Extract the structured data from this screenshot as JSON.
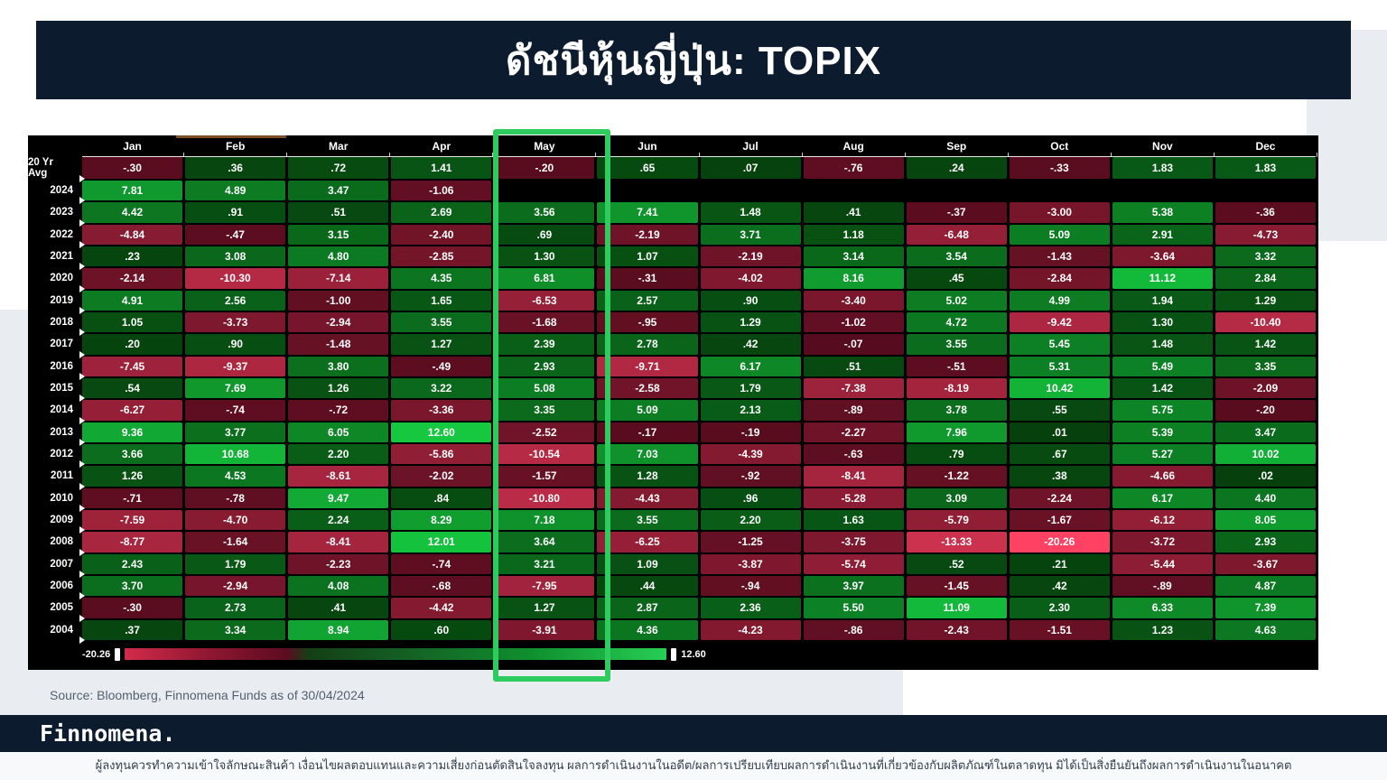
{
  "title": "ดัชนีหุ้นญี่ปุ่น: TOPIX",
  "source": "Source: Bloomberg, Finnomena Funds as of 30/04/2024",
  "footer": {
    "logo": "Finnomena.",
    "disclaimer": "ผู้ลงทุนควรทำความเข้าใจลักษณะสินค้า เงื่อนไขผลตอบแทนและความเสี่ยงก่อนตัดสินใจลงทุน ผลการดำเนินงานในอดีต/ผลการเปรียบเทียบผลการดำเนินงานที่เกี่ยวข้องกับผลิตภัณฑ์ในตลาดทุน มิได้เป็นสิ่งยืนยันถึงผลการดำเนินงานในอนาคต"
  },
  "scale": {
    "min_label": "-20.26",
    "max_label": "12.60"
  },
  "highlight": {
    "column": "May"
  },
  "colors": {
    "navy": "#0d1b2e",
    "accent_green": "#2ecc5e",
    "positive_min": "#06410d",
    "positive_max": "#15c83f",
    "negative_min": "#550b1d",
    "negative_max": "#ff4163",
    "background_gray": "#e9edf2"
  },
  "chart_data": {
    "type": "heatmap",
    "title": "ดัชนีหุ้นญี่ปุ่น: TOPIX",
    "value_unit": "percent monthly return",
    "value_range": [
      -20.26,
      12.6
    ],
    "columns": [
      "Jan",
      "Feb",
      "Mar",
      "Apr",
      "May",
      "Jun",
      "Jul",
      "Aug",
      "Sep",
      "Oct",
      "Nov",
      "Dec"
    ],
    "rows": [
      {
        "label": "20 Yr Avg",
        "values": [
          "-.30",
          ".36",
          ".72",
          "1.41",
          "-.20",
          ".65",
          ".07",
          "-.76",
          ".24",
          "-.33",
          "1.83",
          "1.83"
        ]
      },
      {
        "label": "2024",
        "values": [
          "7.81",
          "4.89",
          "3.47",
          "-1.06",
          null,
          null,
          null,
          null,
          null,
          null,
          null,
          null
        ]
      },
      {
        "label": "2023",
        "values": [
          "4.42",
          ".91",
          ".51",
          "2.69",
          "3.56",
          "7.41",
          "1.48",
          ".41",
          "-.37",
          "-3.00",
          "5.38",
          "-.36"
        ]
      },
      {
        "label": "2022",
        "values": [
          "-4.84",
          "-.47",
          "3.15",
          "-2.40",
          ".69",
          "-2.19",
          "3.71",
          "1.18",
          "-6.48",
          "5.09",
          "2.91",
          "-4.73"
        ]
      },
      {
        "label": "2021",
        "values": [
          ".23",
          "3.08",
          "4.80",
          "-2.85",
          "1.30",
          "1.07",
          "-2.19",
          "3.14",
          "3.54",
          "-1.43",
          "-3.64",
          "3.32"
        ]
      },
      {
        "label": "2020",
        "values": [
          "-2.14",
          "-10.30",
          "-7.14",
          "4.35",
          "6.81",
          "-.31",
          "-4.02",
          "8.16",
          ".45",
          "-2.84",
          "11.12",
          "2.84"
        ]
      },
      {
        "label": "2019",
        "values": [
          "4.91",
          "2.56",
          "-1.00",
          "1.65",
          "-6.53",
          "2.57",
          ".90",
          "-3.40",
          "5.02",
          "4.99",
          "1.94",
          "1.29"
        ]
      },
      {
        "label": "2018",
        "values": [
          "1.05",
          "-3.73",
          "-2.94",
          "3.55",
          "-1.68",
          "-.95",
          "1.29",
          "-1.02",
          "4.72",
          "-9.42",
          "1.30",
          "-10.40"
        ]
      },
      {
        "label": "2017",
        "values": [
          ".20",
          ".90",
          "-1.48",
          "1.27",
          "2.39",
          "2.78",
          ".42",
          "-.07",
          "3.55",
          "5.45",
          "1.48",
          "1.42"
        ]
      },
      {
        "label": "2016",
        "values": [
          "-7.45",
          "-9.37",
          "3.80",
          "-.49",
          "2.93",
          "-9.71",
          "6.17",
          ".51",
          "-.51",
          "5.31",
          "5.49",
          "3.35"
        ]
      },
      {
        "label": "2015",
        "values": [
          ".54",
          "7.69",
          "1.26",
          "3.22",
          "5.08",
          "-2.58",
          "1.79",
          "-7.38",
          "-8.19",
          "10.42",
          "1.42",
          "-2.09"
        ]
      },
      {
        "label": "2014",
        "values": [
          "-6.27",
          "-.74",
          "-.72",
          "-3.36",
          "3.35",
          "5.09",
          "2.13",
          "-.89",
          "3.78",
          ".55",
          "5.75",
          "-.20"
        ]
      },
      {
        "label": "2013",
        "values": [
          "9.36",
          "3.77",
          "6.05",
          "12.60",
          "-2.52",
          "-.17",
          "-.19",
          "-2.27",
          "7.96",
          ".01",
          "5.39",
          "3.47"
        ]
      },
      {
        "label": "2012",
        "values": [
          "3.66",
          "10.68",
          "2.20",
          "-5.86",
          "-10.54",
          "7.03",
          "-4.39",
          "-.63",
          ".79",
          ".67",
          "5.27",
          "10.02"
        ]
      },
      {
        "label": "2011",
        "values": [
          "1.26",
          "4.53",
          "-8.61",
          "-2.02",
          "-1.57",
          "1.28",
          "-.92",
          "-8.41",
          "-1.22",
          ".38",
          "-4.66",
          ".02"
        ]
      },
      {
        "label": "2010",
        "values": [
          "-.71",
          "-.78",
          "9.47",
          ".84",
          "-10.80",
          "-4.43",
          ".96",
          "-5.28",
          "3.09",
          "-2.24",
          "6.17",
          "4.40"
        ]
      },
      {
        "label": "2009",
        "values": [
          "-7.59",
          "-4.70",
          "2.24",
          "8.29",
          "7.18",
          "3.55",
          "2.20",
          "1.63",
          "-5.79",
          "-1.67",
          "-6.12",
          "8.05"
        ]
      },
      {
        "label": "2008",
        "values": [
          "-8.77",
          "-1.64",
          "-8.41",
          "12.01",
          "3.64",
          "-6.25",
          "-1.25",
          "-3.75",
          "-13.33",
          "-20.26",
          "-3.72",
          "2.93"
        ]
      },
      {
        "label": "2007",
        "values": [
          "2.43",
          "1.79",
          "-2.23",
          "-.74",
          "3.21",
          "1.09",
          "-3.87",
          "-5.74",
          ".52",
          ".21",
          "-5.44",
          "-3.67"
        ]
      },
      {
        "label": "2006",
        "values": [
          "3.70",
          "-2.94",
          "4.08",
          "-.68",
          "-7.95",
          ".44",
          "-.94",
          "3.97",
          "-1.45",
          ".42",
          "-.89",
          "4.87"
        ]
      },
      {
        "label": "2005",
        "values": [
          "-.30",
          "2.73",
          ".41",
          "-4.42",
          "1.27",
          "2.87",
          "2.36",
          "5.50",
          "11.09",
          "2.30",
          "6.33",
          "7.39"
        ]
      },
      {
        "label": "2004",
        "values": [
          ".37",
          "3.34",
          "8.94",
          ".60",
          "-3.91",
          "4.36",
          "-4.23",
          "-.86",
          "-2.43",
          "-1.51",
          "1.23",
          "4.63"
        ]
      }
    ]
  }
}
